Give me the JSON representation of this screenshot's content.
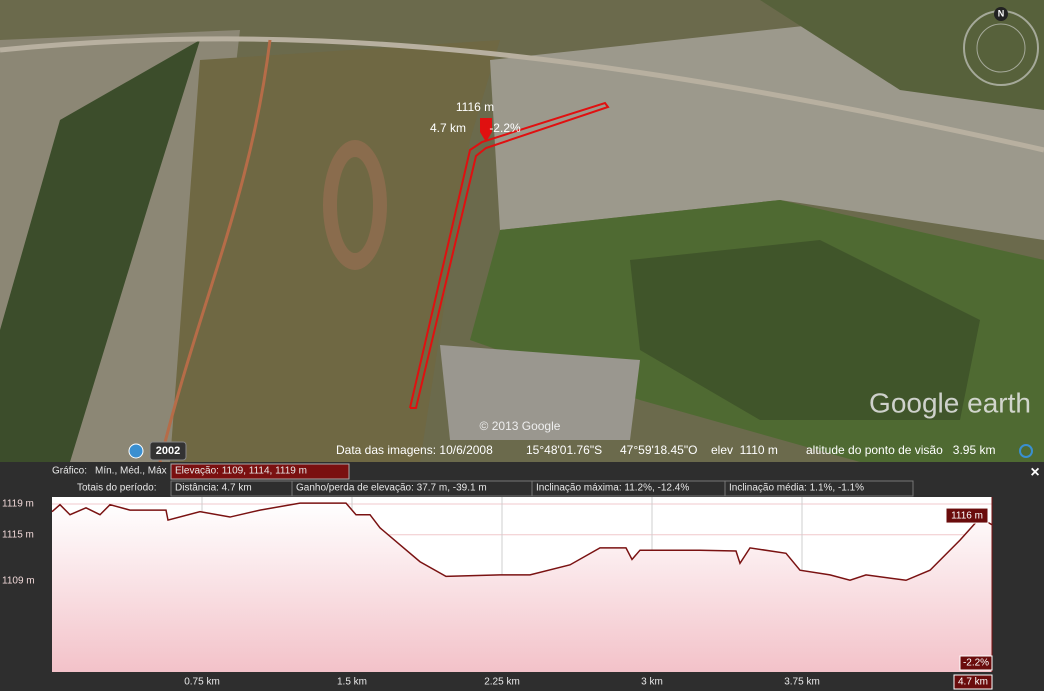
{
  "map": {
    "overlay": {
      "elevation": "1116 m",
      "distance": "4.7 km",
      "slope": "-2.2%"
    },
    "copyright": "© 2013 Google",
    "historical_year": "2002",
    "compass": "N",
    "logo": "Google earth",
    "status": {
      "imagery_date": "Data das imagens: 10/6/2008",
      "latitude": "15°48'01.76\"S",
      "longitude": "47°59'18.45\"O",
      "elevation": "elev  1110 m",
      "eye_altitude": "altitude do ponto de visão   3.95 km"
    }
  },
  "profile_header": {
    "graph_label": "Gráfico:",
    "stats_label": "Mín., Méd., Máx",
    "elevation": "Elevação: 1109, 1114, 1119 m",
    "totals_label": "Totais do período:",
    "distance": "Distância: 4.7 km",
    "gain_loss": "Ganho/perda de elevação: 37.7 m, -39.1 m",
    "max_slope": "Inclinação máxima: 11.2%, -12.4%",
    "avg_slope": "Inclinação média: 1.1%, -1.1%",
    "close": "×"
  },
  "chart_data": {
    "type": "area",
    "color": "#7a1212",
    "x": [
      0,
      0.04,
      0.09,
      0.17,
      0.24,
      0.29,
      0.39,
      0.57,
      0.58,
      0.74,
      0.89,
      1.04,
      1.24,
      1.47,
      1.52,
      1.59,
      1.64,
      1.74,
      1.84,
      1.97,
      2.24,
      2.39,
      2.59,
      2.74,
      2.87,
      2.9,
      2.94,
      3.24,
      3.42,
      3.44,
      3.49,
      3.67,
      3.74,
      3.89,
      3.99,
      4.07,
      4.27,
      4.39,
      4.54,
      4.64,
      4.7
    ],
    "values": [
      1118.0,
      1118.9,
      1117.6,
      1118.5,
      1117.6,
      1118.9,
      1118.2,
      1118.2,
      1116.9,
      1118.0,
      1117.3,
      1118.2,
      1119.1,
      1119.1,
      1117.6,
      1117.6,
      1115.9,
      1113.7,
      1111.5,
      1109.6,
      1109.8,
      1109.8,
      1111.1,
      1113.3,
      1113.3,
      1111.8,
      1113.0,
      1113.0,
      1112.9,
      1111.3,
      1113.3,
      1112.6,
      1110.4,
      1109.8,
      1109.1,
      1109.8,
      1109.1,
      1110.4,
      1114.3,
      1117.2,
      1116.3
    ],
    "xlim": [
      0,
      4.7
    ],
    "ylim": [
      1097.2,
      1119.9
    ],
    "xticks": [
      {
        "value": 0.75,
        "label": "0.75 km"
      },
      {
        "value": 1.5,
        "label": "1.5 km"
      },
      {
        "value": 2.25,
        "label": "2.25 km"
      },
      {
        "value": 3,
        "label": "3 km"
      },
      {
        "value": 3.75,
        "label": "3.75 km"
      }
    ],
    "yticks": [
      {
        "value": 1119,
        "label": "1119 m"
      },
      {
        "value": 1115,
        "label": "1115 m"
      },
      {
        "value": 1109,
        "label": "1109 m"
      }
    ],
    "grid": true,
    "cursor": {
      "x": 4.7,
      "x_label": "4.7 km",
      "y": 1116,
      "y_label": "1116 m",
      "slope_label": "-2.2%"
    }
  }
}
